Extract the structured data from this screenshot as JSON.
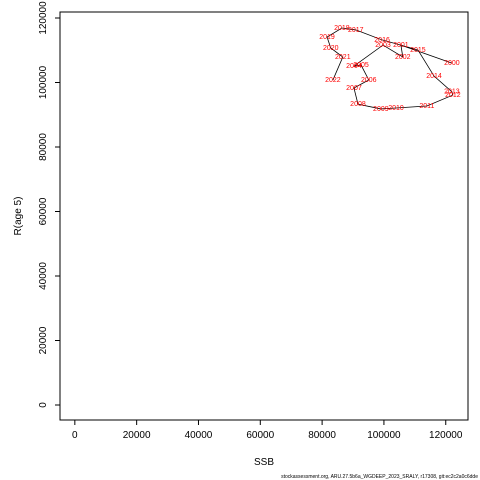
{
  "chart_data": {
    "type": "line",
    "xlabel": "SSB",
    "ylabel": "R(age 5)",
    "footer": "stockassessment.org, ARU.27.5b6a_WGDEEP_2023_SRALY, r17308, git:ec2c2a0c6dde",
    "x": [
      122000,
      105500,
      106100,
      99700,
      90300,
      92600,
      95100,
      90300,
      91600,
      99000,
      103900,
      113900,
      122300,
      122000,
      116200,
      111000,
      99400,
      90900,
      86400,
      81600,
      82800,
      86700,
      83500
    ],
    "point_labels": [
      "2000",
      "2001",
      "2002",
      "2003",
      "2004",
      "2005",
      "2006",
      "2007",
      "2008",
      "2009",
      "2010",
      "2011",
      "2012",
      "2013",
      "2014",
      "2015",
      "2016",
      "2017",
      "2018",
      "2019",
      "2020",
      "2021",
      "2022"
    ],
    "series": [
      {
        "name": "R",
        "color": "#000000",
        "label_color": "#ff0000",
        "values": [
          106000,
          111600,
          107900,
          111600,
          105100,
          105400,
          100800,
          98300,
          93300,
          91800,
          92100,
          92700,
          96100,
          97100,
          102000,
          110100,
          113200,
          116300,
          116900,
          114100,
          110700,
          107900,
          100800
        ]
      }
    ],
    "xlim": [
      -4800,
      127200
    ],
    "ylim": [
      -4650,
      121860
    ],
    "xticks": [
      0,
      20000,
      40000,
      60000,
      80000,
      100000,
      120000
    ],
    "yticks": [
      0,
      20000,
      40000,
      60000,
      80000,
      100000,
      120000
    ]
  }
}
